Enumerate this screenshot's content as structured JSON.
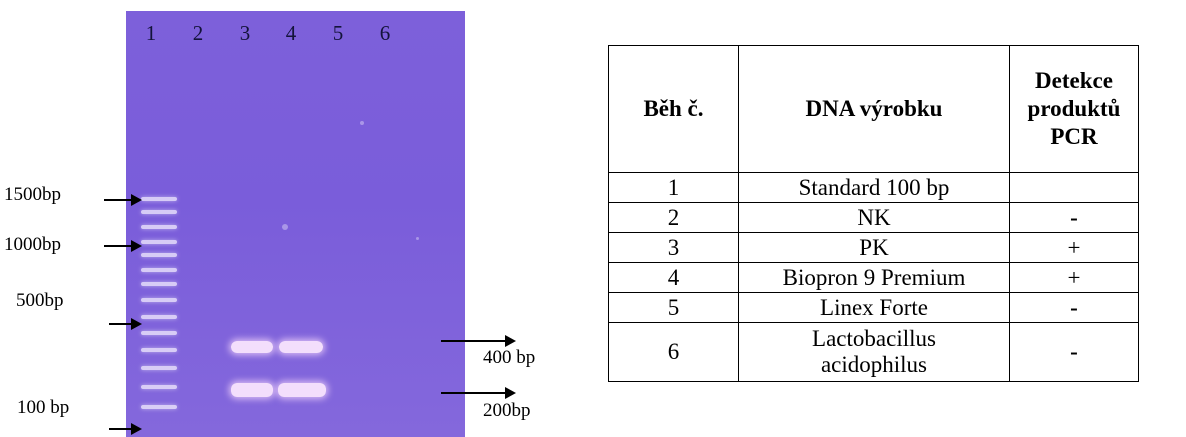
{
  "gel": {
    "lane_numbers": [
      "1",
      "2",
      "3",
      "4",
      "5",
      "6"
    ],
    "left_markers": [
      "1500bp",
      "1000bp",
      "500bp",
      "100 bp"
    ],
    "right_markers": [
      "400 bp",
      "200bp"
    ],
    "background_color": "#7b5eda"
  },
  "table": {
    "headers": [
      "Běh č.",
      "DNA výrobku",
      "Detekce produktů PCR"
    ],
    "rows": [
      {
        "run": "1",
        "dna": "Standard 100 bp",
        "pcr": ""
      },
      {
        "run": "2",
        "dna": "NK",
        "pcr": "-"
      },
      {
        "run": "3",
        "dna": "PK",
        "pcr": "+"
      },
      {
        "run": "4",
        "dna": "Biopron 9 Premium",
        "pcr": "+"
      },
      {
        "run": "5",
        "dna": "Linex Forte",
        "pcr": "-"
      },
      {
        "run": "6",
        "dna": "Lactobacillus acidophilus",
        "pcr": "-"
      }
    ]
  }
}
